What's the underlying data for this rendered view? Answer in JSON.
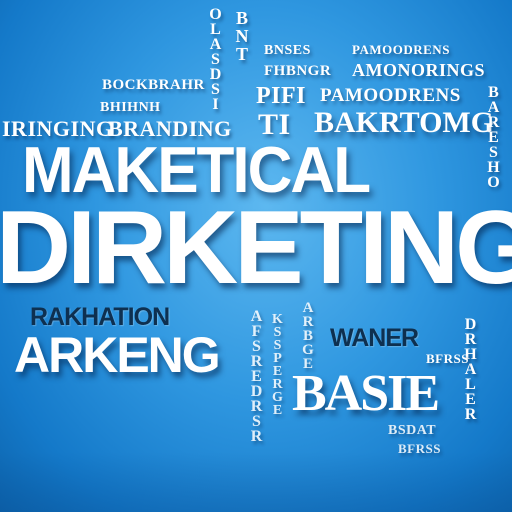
{
  "words": {
    "marketical": "MAKETICAL",
    "dirketing": "DIRKETING",
    "rakhation": "RAKHATION",
    "arkeng": "ARKENG",
    "baktomg": "BAKRTOMG",
    "basie": "BASIE",
    "waner": "WANER",
    "pifl": "PIFI",
    "ti": "TI",
    "bockbrahr": "BOCKBRAHR",
    "branding": "BRANDING",
    "ringing": "IRINGING",
    "amonorings": "AMONORINGS",
    "pamoodrens": "PAMOODRENS",
    "bnses": "BNSES",
    "fhbngr": "FHBNGR",
    "bhihnh": "BHIHNH",
    "bfrss": "BFRSS",
    "bsdat": "BSDAT"
  },
  "vertical": {
    "top_center": "OLASDSI",
    "right_upper": "BARESHO",
    "mid_center": "AFSREDRSR",
    "mid_center_b": "KSSPERGE",
    "right_mid": "ARBGE",
    "right_lower": "DRHALER",
    "left_upper": "BNT"
  },
  "colors": {
    "background_center": "#5db8f0",
    "background_edge": "#0d64ad",
    "text": "#ffffff",
    "accent_dark": "#0e3050"
  }
}
